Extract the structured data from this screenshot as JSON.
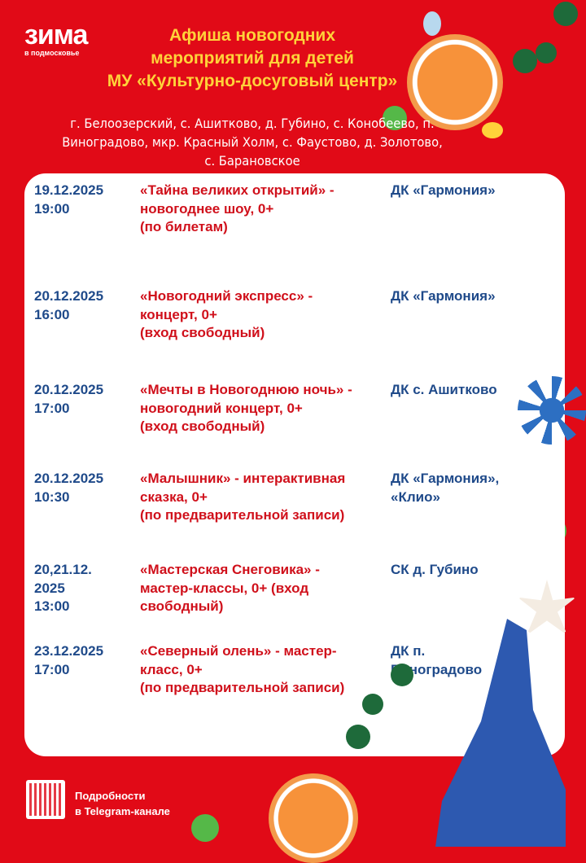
{
  "logo": {
    "main": "зима",
    "sub": "в подмосковье"
  },
  "header": {
    "title_lines": [
      "Афиша новогодних",
      "мероприятий для детей",
      "МУ «Культурно-досуговый центр»"
    ],
    "places_lines": [
      "г. Белоозерский, с. Ашитково, д. Губино, с. Конобеево, п.",
      "Виноградово, мкр. Красный Холм, с. Фаустово, д. Золотово,",
      "с. Барановское"
    ]
  },
  "events": [
    {
      "date": [
        "19.12.2025",
        "19:00"
      ],
      "event": [
        "«Тайна великих открытий» -",
        "новогоднее шоу, 0+",
        "(по билетам)"
      ],
      "venue": [
        "ДК «Гармония»"
      ]
    },
    {
      "date": [
        "20.12.2025",
        "16:00"
      ],
      "event": [
        "«Новогодний экспресс» -",
        "концерт, 0+",
        "(вход свободный)"
      ],
      "venue": [
        "ДК «Гармония»"
      ]
    },
    {
      "date": [
        "20.12.2025",
        "17:00"
      ],
      "event": [
        "«Мечты в Новогоднюю ночь» -",
        "новогодний концерт, 0+",
        "(вход свободный)"
      ],
      "venue": [
        "ДК с. Ашитково"
      ]
    },
    {
      "date": [
        "20.12.2025",
        "10:30"
      ],
      "event": [
        "«Малышник» - интерактивная",
        "сказка, 0+",
        "(по предварительной записи)"
      ],
      "venue": [
        "ДК «Гармония»,",
        "«Клио»"
      ]
    },
    {
      "date": [
        "20,21.12.",
        "2025",
        "13:00"
      ],
      "event": [
        "«Мастерская Снеговика» -",
        "мастер-классы,  0+ (вход",
        "свободный)"
      ],
      "venue": [
        "СК д. Губино"
      ]
    },
    {
      "date": [
        "23.12.2025",
        "17:00"
      ],
      "event": [
        "«Северный олень» - мастер-",
        "класс,  0+",
        "(по предварительной записи)"
      ],
      "venue": [
        "ДК п.",
        "Виноградово"
      ]
    }
  ],
  "footer": {
    "telegram_lines": [
      "Подробности",
      "в Telegram-канале"
    ]
  },
  "colors": {
    "background": "#e10a17",
    "title": "#ffd23a",
    "date": "#1f4a8a",
    "event": "#d0101b"
  }
}
